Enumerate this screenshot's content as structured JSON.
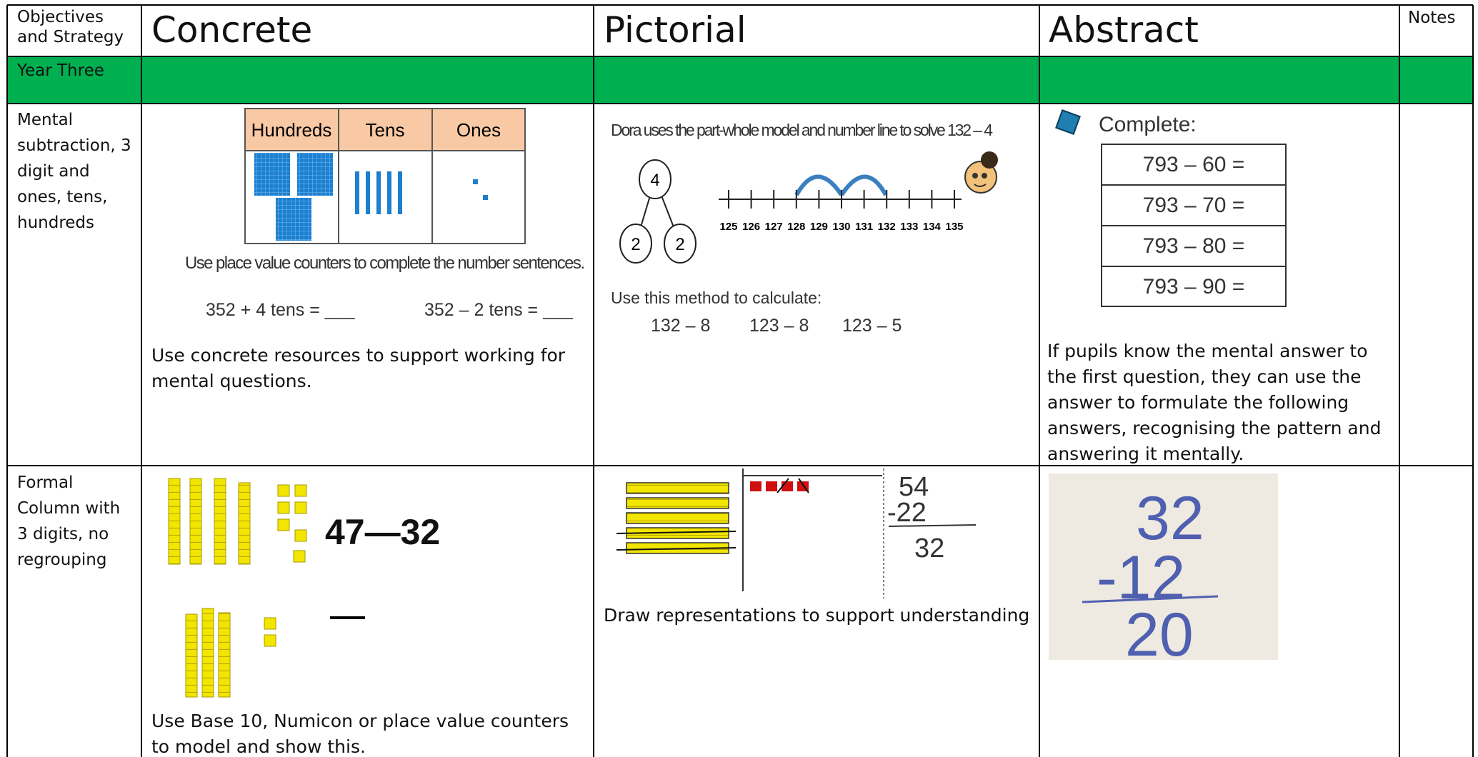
{
  "header": {
    "objectives": "Objectives and Strategy",
    "concrete": "Concrete",
    "pictorial": "Pictorial",
    "abstract": "Abstract",
    "notes": "Notes"
  },
  "section": "Year Three",
  "rows": [
    {
      "objective": "Mental subtraction, 3 digit and ones, tens, hundreds",
      "concrete": {
        "table_headers": [
          "Hundreds",
          "Tens",
          "Ones"
        ],
        "instruction": "Use place value counters to complete the number sentences.",
        "sentences": [
          "352 + 4 tens = ___",
          "352 – 2 tens = ___"
        ],
        "text": "Use concrete resources to support working for mental questions."
      },
      "pictorial": {
        "title": "Dora uses the part-whole model and number line to solve 132 – 4",
        "part_whole": [
          "4",
          "2",
          "2"
        ],
        "number_line": [
          "125",
          "126",
          "127",
          "128",
          "129",
          "130",
          "131",
          "132",
          "133",
          "134",
          "135"
        ],
        "prompt": "Use this method to calculate:",
        "questions": [
          "132 – 8",
          "123 – 8",
          "123 – 5"
        ]
      },
      "abstract": {
        "heading": "Complete:",
        "questions": [
          "793 – 60 =",
          "793 – 70 =",
          "793 – 80 =",
          "793 – 90 ="
        ],
        "text": "If pupils know the mental answer to the first question, they can use the answer to formulate the following answers, recognising the pattern and answering it mentally."
      }
    },
    {
      "objective": "Formal Column with 3 digits, no regrouping",
      "concrete": {
        "calculation": "47—32",
        "text": "Use Base 10, Numicon or place value counters to model and show this."
      },
      "pictorial": {
        "working": [
          "54",
          "-22",
          "32"
        ],
        "text": "Draw representations to support understanding"
      },
      "abstract": {
        "working": [
          "32",
          "-12",
          "20"
        ]
      }
    }
  ]
}
